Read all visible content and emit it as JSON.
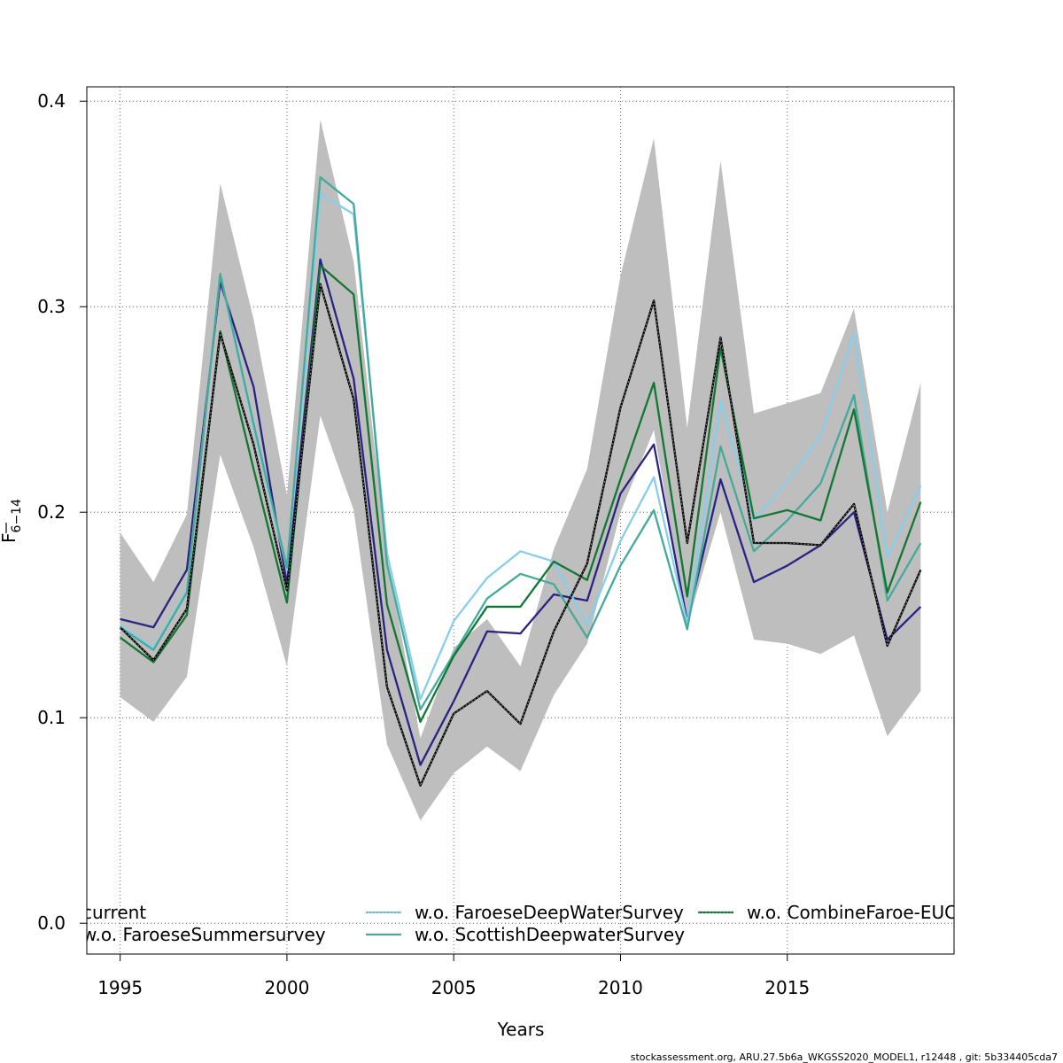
{
  "chart_data": {
    "type": "line",
    "xlabel": "Years",
    "ylabel_main": "F",
    "ylabel_sub": "6−14",
    "xlim": [
      1994,
      2020
    ],
    "ylim": [
      -0.015,
      0.407
    ],
    "xticks": [
      1995,
      2000,
      2005,
      2010,
      2015
    ],
    "yticks": [
      0.0,
      0.1,
      0.2,
      0.3,
      0.4
    ],
    "ytick_labels": [
      "0.0",
      "0.1",
      "0.2",
      "0.3",
      "0.4"
    ],
    "grid": true,
    "legend_position": "bottom",
    "x": [
      1995,
      1996,
      1997,
      1998,
      1999,
      2000,
      2001,
      2002,
      2003,
      2004,
      2005,
      2006,
      2007,
      2008,
      2009,
      2010,
      2011,
      2012,
      2013,
      2014,
      2015,
      2016,
      2017,
      2018,
      2019
    ],
    "band": {
      "lower": [
        0.11,
        0.098,
        0.12,
        0.228,
        0.183,
        0.125,
        0.247,
        0.201,
        0.087,
        0.05,
        0.073,
        0.086,
        0.074,
        0.111,
        0.136,
        0.2,
        0.24,
        0.145,
        0.2,
        0.138,
        0.136,
        0.131,
        0.14,
        0.091,
        0.113
      ],
      "upper": [
        0.19,
        0.166,
        0.199,
        0.36,
        0.294,
        0.208,
        0.391,
        0.322,
        0.178,
        0.09,
        0.134,
        0.148,
        0.125,
        0.182,
        0.221,
        0.315,
        0.382,
        0.241,
        0.371,
        0.248,
        0.253,
        0.258,
        0.299,
        0.2,
        0.263
      ],
      "color": "#bebebe"
    },
    "series": [
      {
        "name": "current",
        "color": "#000000",
        "dashed": true,
        "values": [
          0.144,
          0.128,
          0.153,
          0.287,
          0.233,
          0.162,
          0.311,
          0.255,
          0.115,
          0.067,
          0.102,
          0.113,
          0.097,
          0.142,
          0.175,
          0.251,
          0.303,
          0.185,
          0.285,
          0.185,
          0.185,
          0.184,
          0.204,
          0.135,
          0.172
        ]
      },
      {
        "name": "w.o. FaroeseSummersurvey",
        "color": "#2b2383",
        "dashed": false,
        "values": [
          0.148,
          0.144,
          0.172,
          0.312,
          0.261,
          0.165,
          0.323,
          0.265,
          0.133,
          0.077,
          0.108,
          0.142,
          0.141,
          0.16,
          0.157,
          0.209,
          0.233,
          0.147,
          0.216,
          0.166,
          0.174,
          0.184,
          0.2,
          0.138,
          0.154
        ]
      },
      {
        "name": "w.o. FaroeseDeepWaterSurvey",
        "color": "#87ceeb",
        "dashed": false,
        "values": [
          0.145,
          0.134,
          0.162,
          0.316,
          0.241,
          0.172,
          0.355,
          0.345,
          0.18,
          0.109,
          0.147,
          0.168,
          0.181,
          0.176,
          0.145,
          0.186,
          0.217,
          0.146,
          0.254,
          0.196,
          0.215,
          0.237,
          0.287,
          0.178,
          0.213
        ]
      },
      {
        "name": "w.o. ScottishDeepwaterSurvey",
        "color": "#44aa99",
        "dashed": false,
        "values": [
          0.144,
          0.133,
          0.161,
          0.316,
          0.243,
          0.173,
          0.363,
          0.35,
          0.175,
          0.104,
          0.131,
          0.158,
          0.17,
          0.165,
          0.139,
          0.174,
          0.201,
          0.143,
          0.232,
          0.181,
          0.196,
          0.214,
          0.257,
          0.157,
          0.185
        ]
      },
      {
        "name": "w.o. CombineFaroe-EUC",
        "color": "#117733",
        "dashed": false,
        "values": [
          0.139,
          0.127,
          0.15,
          0.288,
          0.221,
          0.156,
          0.32,
          0.306,
          0.155,
          0.098,
          0.13,
          0.154,
          0.154,
          0.176,
          0.167,
          0.216,
          0.263,
          0.159,
          0.28,
          0.197,
          0.201,
          0.196,
          0.25,
          0.161,
          0.205
        ]
      }
    ],
    "caption": "stockassessment.org, ARU.27.5b6a_WKGSS2020_MODEL1, r12448 , git: 5b334405cda7"
  }
}
